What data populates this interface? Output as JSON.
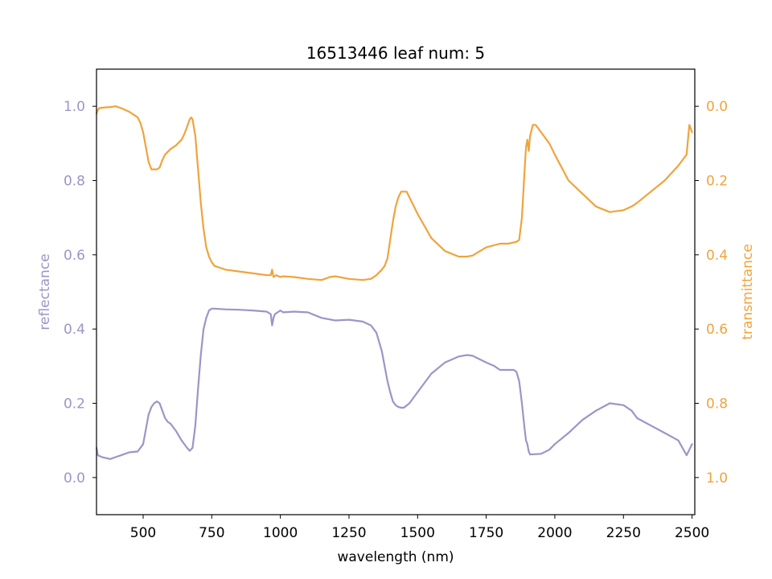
{
  "chart_data": {
    "type": "line",
    "title": "16513446 leaf num: 5",
    "xlabel": "wavelength (nm)",
    "xlim": [
      330,
      2510
    ],
    "xticks": [
      500,
      750,
      1000,
      1250,
      1500,
      1750,
      2000,
      2250,
      2500
    ],
    "grid": false,
    "legend": "none",
    "y_left": {
      "label": "reflectance",
      "color": "#9b95c9",
      "lim": [
        -0.1,
        1.1
      ],
      "ticks": [
        0.0,
        0.2,
        0.4,
        0.6,
        0.8,
        1.0
      ]
    },
    "y_right": {
      "label": "transmittance",
      "color": "#f0a33c",
      "inverted": true,
      "lim": [
        -0.1,
        1.1
      ],
      "ticks": [
        0.0,
        0.2,
        0.4,
        0.6,
        0.8,
        1.0
      ]
    },
    "series": [
      {
        "axis": "left",
        "color": "#9b95c9",
        "x": [
          330,
          335,
          350,
          380,
          400,
          420,
          450,
          480,
          500,
          510,
          520,
          530,
          540,
          550,
          560,
          570,
          580,
          590,
          600,
          620,
          640,
          660,
          670,
          680,
          690,
          700,
          710,
          720,
          730,
          740,
          750,
          760,
          800,
          850,
          900,
          950,
          965,
          970,
          975,
          980,
          990,
          1000,
          1010,
          1050,
          1100,
          1150,
          1200,
          1250,
          1300,
          1330,
          1350,
          1370,
          1380,
          1390,
          1400,
          1410,
          1420,
          1430,
          1440,
          1450,
          1470,
          1500,
          1550,
          1600,
          1650,
          1680,
          1700,
          1750,
          1780,
          1800,
          1830,
          1850,
          1860,
          1870,
          1880,
          1890,
          1895,
          1900,
          1905,
          1910,
          1950,
          1980,
          2000,
          2050,
          2100,
          2150,
          2200,
          2250,
          2280,
          2300,
          2350,
          2400,
          2450,
          2480,
          2500
        ],
        "y": [
          0.08,
          0.06,
          0.055,
          0.05,
          0.055,
          0.06,
          0.068,
          0.07,
          0.09,
          0.13,
          0.17,
          0.19,
          0.2,
          0.205,
          0.2,
          0.18,
          0.16,
          0.15,
          0.145,
          0.125,
          0.1,
          0.08,
          0.072,
          0.08,
          0.14,
          0.24,
          0.33,
          0.4,
          0.43,
          0.45,
          0.455,
          0.455,
          0.453,
          0.452,
          0.45,
          0.447,
          0.44,
          0.41,
          0.43,
          0.44,
          0.445,
          0.45,
          0.445,
          0.447,
          0.445,
          0.43,
          0.423,
          0.425,
          0.42,
          0.41,
          0.39,
          0.34,
          0.3,
          0.26,
          0.23,
          0.205,
          0.195,
          0.19,
          0.188,
          0.188,
          0.2,
          0.23,
          0.28,
          0.31,
          0.326,
          0.33,
          0.328,
          0.31,
          0.3,
          0.29,
          0.29,
          0.29,
          0.285,
          0.26,
          0.2,
          0.13,
          0.1,
          0.09,
          0.07,
          0.062,
          0.064,
          0.075,
          0.09,
          0.12,
          0.155,
          0.18,
          0.2,
          0.195,
          0.18,
          0.16,
          0.14,
          0.12,
          0.1,
          0.06,
          0.09
        ]
      },
      {
        "axis": "right",
        "color": "#f0a33c",
        "x": [
          330,
          335,
          340,
          360,
          380,
          400,
          420,
          450,
          470,
          480,
          490,
          500,
          510,
          520,
          530,
          540,
          550,
          560,
          570,
          580,
          600,
          620,
          640,
          650,
          660,
          670,
          675,
          680,
          690,
          700,
          710,
          720,
          730,
          740,
          750,
          760,
          780,
          800,
          850,
          900,
          950,
          965,
          970,
          975,
          985,
          1000,
          1010,
          1050,
          1100,
          1150,
          1180,
          1200,
          1250,
          1300,
          1330,
          1350,
          1370,
          1380,
          1390,
          1400,
          1410,
          1420,
          1430,
          1440,
          1450,
          1460,
          1470,
          1500,
          1550,
          1600,
          1650,
          1680,
          1700,
          1750,
          1800,
          1830,
          1860,
          1870,
          1880,
          1890,
          1895,
          1900,
          1905,
          1910,
          1920,
          1930,
          1950,
          1980,
          2000,
          2050,
          2100,
          2150,
          2200,
          2250,
          2280,
          2300,
          2350,
          2400,
          2450,
          2480,
          2490,
          2500
        ],
        "y": [
          0.02,
          0.01,
          0.005,
          0.003,
          0.002,
          0.0,
          0.005,
          0.015,
          0.025,
          0.03,
          0.045,
          0.07,
          0.11,
          0.15,
          0.17,
          0.17,
          0.17,
          0.165,
          0.145,
          0.13,
          0.115,
          0.105,
          0.09,
          0.075,
          0.055,
          0.035,
          0.03,
          0.035,
          0.08,
          0.17,
          0.26,
          0.33,
          0.38,
          0.405,
          0.42,
          0.43,
          0.435,
          0.44,
          0.445,
          0.45,
          0.455,
          0.455,
          0.44,
          0.46,
          0.455,
          0.46,
          0.458,
          0.46,
          0.465,
          0.468,
          0.46,
          0.458,
          0.465,
          0.468,
          0.465,
          0.455,
          0.44,
          0.43,
          0.41,
          0.36,
          0.31,
          0.27,
          0.245,
          0.23,
          0.23,
          0.23,
          0.245,
          0.29,
          0.355,
          0.39,
          0.405,
          0.405,
          0.402,
          0.38,
          0.37,
          0.37,
          0.365,
          0.36,
          0.3,
          0.17,
          0.11,
          0.09,
          0.12,
          0.08,
          0.05,
          0.05,
          0.07,
          0.1,
          0.13,
          0.2,
          0.235,
          0.27,
          0.285,
          0.28,
          0.27,
          0.26,
          0.23,
          0.2,
          0.16,
          0.13,
          0.05,
          0.07
        ]
      }
    ]
  }
}
